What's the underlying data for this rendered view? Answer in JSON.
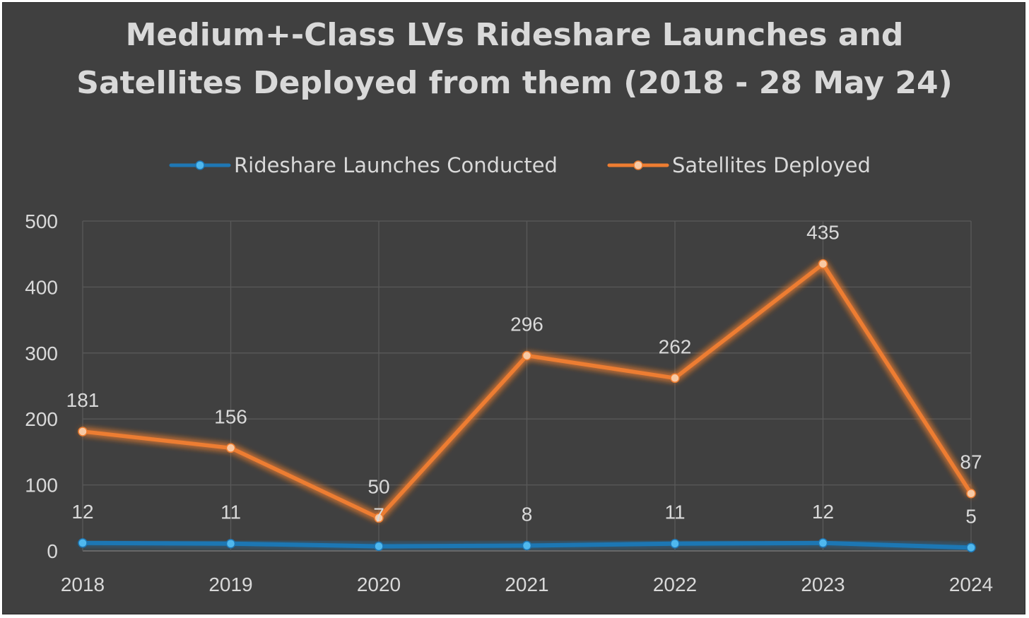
{
  "title_lines": [
    "Medium+-Class LVs Rideshare Launches and",
    "Satellites Deployed from them (2018 - 28 May 24)"
  ],
  "colors": {
    "background": "#404040",
    "text": "#d9d9d9",
    "grid": "#595959",
    "launches": "#1f77b4",
    "satellites": "#ed7d31"
  },
  "chart_data": {
    "type": "line",
    "title": "Medium+-Class LVs Rideshare Launches and Satellites Deployed from them (2018 - 28 May 24)",
    "xlabel": "",
    "ylabel": "",
    "x": [
      "2018",
      "2019",
      "2020",
      "2021",
      "2022",
      "2023",
      "2024"
    ],
    "ylim": [
      0,
      500
    ],
    "yticks": [
      0,
      100,
      200,
      300,
      400,
      500
    ],
    "grid": true,
    "legend_position": "top",
    "series": [
      {
        "name": "Rideshare Launches Conducted",
        "color": "#1f77b4",
        "values": [
          12,
          11,
          7,
          8,
          11,
          12,
          5
        ]
      },
      {
        "name": "Satellites Deployed",
        "color": "#ed7d31",
        "values": [
          181,
          156,
          50,
          296,
          262,
          435,
          87
        ]
      }
    ]
  }
}
